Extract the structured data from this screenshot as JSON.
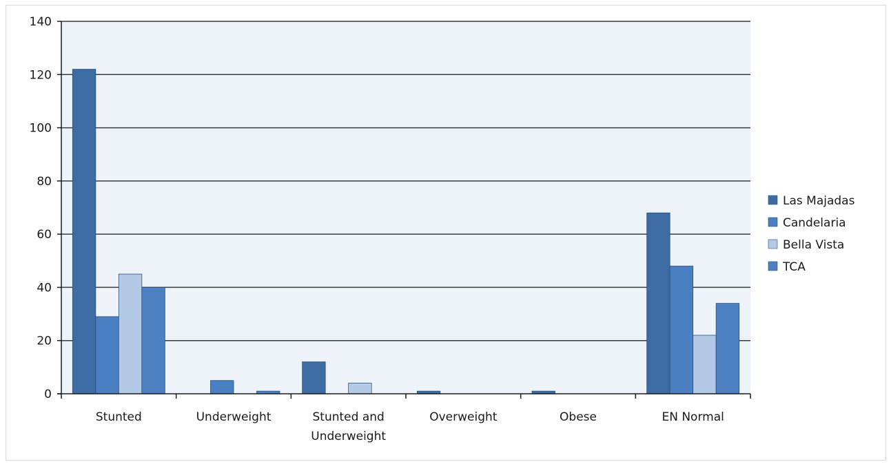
{
  "chart_data": {
    "type": "bar",
    "title": "",
    "xlabel": "",
    "ylabel": "",
    "categories": [
      [
        "Stunted"
      ],
      [
        "Underweight"
      ],
      [
        "Stunted and",
        "Underweight"
      ],
      [
        "Overweight"
      ],
      [
        "Obese"
      ],
      [
        "EN Normal"
      ]
    ],
    "series": [
      {
        "name": "Las Majadas",
        "color": "#3d6ba4",
        "values": [
          122,
          0,
          12,
          1,
          1,
          68
        ]
      },
      {
        "name": "Candelaria",
        "color": "#4a7fc2",
        "values": [
          29,
          5,
          0,
          0,
          0,
          48
        ]
      },
      {
        "name": "Bella Vista",
        "color": "#b3c9e6",
        "values": [
          45,
          0,
          4,
          0,
          0,
          22
        ]
      },
      {
        "name": "TCA",
        "color": "#4c80c0",
        "values": [
          40,
          1,
          0,
          0,
          0,
          34
        ]
      }
    ],
    "ylim": [
      0,
      140
    ],
    "yticks": [
      0,
      20,
      40,
      60,
      80,
      100,
      120,
      140
    ],
    "grid": true,
    "legend_position": "right",
    "plot_background": "#eef3fa"
  }
}
